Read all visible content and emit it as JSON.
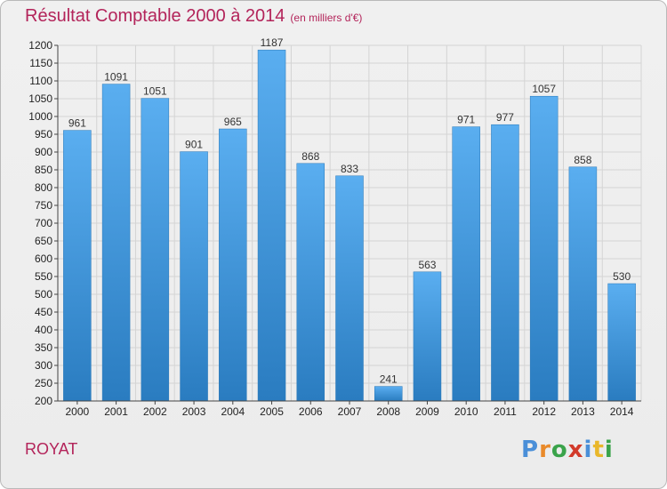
{
  "header": {
    "title": "Résultat Comptable 2000 à 2014",
    "subtitle": "(en milliers d'€)"
  },
  "footer": {
    "place": "ROYAT",
    "logo_letters": [
      "P",
      "r",
      "o",
      "x",
      "i",
      "t",
      "i"
    ],
    "logo_colors": [
      "#4a8fd8",
      "#e98a2a",
      "#3aa34a",
      "#d23a2a",
      "#4a8fd8",
      "#e9b72a",
      "#3aa34a"
    ]
  },
  "chart_data": {
    "type": "bar",
    "title": "Résultat Comptable 2000 à 2014",
    "subtitle": "(en milliers d'€)",
    "categories": [
      "2000",
      "2001",
      "2002",
      "2003",
      "2004",
      "2005",
      "2006",
      "2007",
      "2008",
      "2009",
      "2010",
      "2011",
      "2012",
      "2013",
      "2014"
    ],
    "values": [
      961,
      1091,
      1051,
      901,
      965,
      1187,
      868,
      833,
      241,
      563,
      971,
      977,
      1057,
      858,
      530
    ],
    "ylim": [
      200,
      1200
    ],
    "yticks": [
      200,
      250,
      300,
      350,
      400,
      450,
      500,
      550,
      600,
      650,
      700,
      750,
      800,
      850,
      900,
      950,
      1000,
      1050,
      1100,
      1150,
      1200
    ],
    "grid": true,
    "bar_color_top": "#5aaef0",
    "bar_color_bottom": "#2a7cc0"
  }
}
